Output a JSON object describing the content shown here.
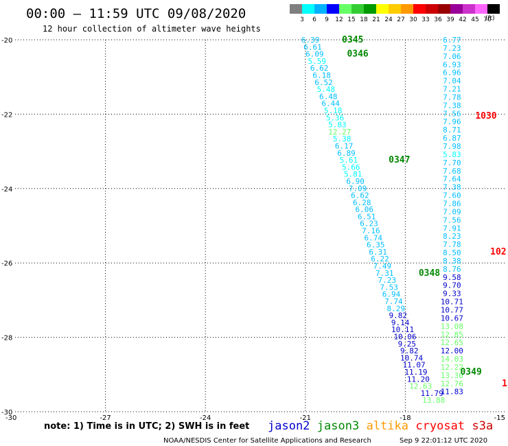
{
  "header": {
    "title": "00:00 – 11:59 UTC 09/08/2020",
    "subtitle": "12 hour collection of altimeter wave heights"
  },
  "colorbar": {
    "labels": [
      "3",
      "6",
      "9",
      "12",
      "15",
      "18",
      "21",
      "24",
      "27",
      "30",
      "33",
      "36",
      "39",
      "42",
      "45",
      "70"
    ],
    "unit": "(ft)",
    "colors": [
      "#7f7f7f",
      "#00ffff",
      "#00b2ff",
      "#0000ff",
      "#66ff66",
      "#33cc33",
      "#009900",
      "#ffff00",
      "#ffcc00",
      "#ff9900",
      "#ff0000",
      "#cc0000",
      "#990000",
      "#990099",
      "#cc33cc",
      "#ff66ff",
      "#000000"
    ]
  },
  "footer": {
    "note": "note: 1) Time is in UTC; 2) SWH is in feet",
    "legend": [
      {
        "name": "jason2",
        "color": "#0000cc"
      },
      {
        "name": "jason3",
        "color": "#008800"
      },
      {
        "name": "altika",
        "color": "#ff9900"
      },
      {
        "name": "cryosat",
        "color": "#ff0000"
      },
      {
        "name": "s3a",
        "color": "#cc0000"
      }
    ],
    "credit": "NOAA/NESDIS Center for Satellite Applications and Research",
    "timestamp": "Sep  9 22:01:12 UTC 2020"
  },
  "chart_data": {
    "type": "scatter",
    "xlim": [
      -30,
      -15
    ],
    "ylim": [
      -30,
      -20
    ],
    "xticks": [
      -30,
      -27,
      -24,
      -21,
      -18,
      -15
    ],
    "yticks": [
      -20,
      -22,
      -24,
      -26,
      -28,
      -30
    ],
    "grid": true,
    "legend_placement": "bottom",
    "tracks": [
      {
        "name": "track-1",
        "points": [
          {
            "x": -20.85,
            "y": -20.0,
            "v": "6.39",
            "color": "#00bfff"
          },
          {
            "x": -20.78,
            "y": -20.19,
            "v": "6.61",
            "color": "#00bfff"
          },
          {
            "x": -20.72,
            "y": -20.38,
            "v": "6.09",
            "color": "#00bfff"
          },
          {
            "x": -20.65,
            "y": -20.57,
            "v": "5.59",
            "color": "#00ffff"
          },
          {
            "x": -20.58,
            "y": -20.76,
            "v": "6.62",
            "color": "#00bfff"
          },
          {
            "x": -20.51,
            "y": -20.95,
            "v": "6.18",
            "color": "#00bfff"
          },
          {
            "x": -20.45,
            "y": -21.14,
            "v": "6.52",
            "color": "#00bfff"
          },
          {
            "x": -20.38,
            "y": -21.33,
            "v": "5.48",
            "color": "#00ffff"
          },
          {
            "x": -20.31,
            "y": -21.52,
            "v": "6.48",
            "color": "#00bfff"
          },
          {
            "x": -20.24,
            "y": -21.71,
            "v": "6.44",
            "color": "#00bfff"
          },
          {
            "x": -20.17,
            "y": -21.9,
            "v": "5.18",
            "color": "#00ffff"
          },
          {
            "x": -20.11,
            "y": -22.09,
            "v": "5.36",
            "color": "#00ffff"
          },
          {
            "x": -20.04,
            "y": -22.28,
            "v": "5.83",
            "color": "#00ffff"
          },
          {
            "x": -19.97,
            "y": -22.47,
            "v": "12.27",
            "color": "#66ff66"
          },
          {
            "x": -19.9,
            "y": -22.66,
            "v": "5.38",
            "color": "#00ffff"
          },
          {
            "x": -19.84,
            "y": -22.85,
            "v": "6.17",
            "color": "#00bfff"
          },
          {
            "x": -19.77,
            "y": -23.04,
            "v": "6.89",
            "color": "#00bfff"
          },
          {
            "x": -19.7,
            "y": -23.23,
            "v": "5.61",
            "color": "#00ffff"
          },
          {
            "x": -19.63,
            "y": -23.42,
            "v": "5.66",
            "color": "#00ffff"
          },
          {
            "x": -19.57,
            "y": -23.61,
            "v": "5.81",
            "color": "#00ffff"
          },
          {
            "x": -19.5,
            "y": -23.8,
            "v": "6.90",
            "color": "#00bfff"
          },
          {
            "x": -19.43,
            "y": -23.99,
            "v": "7.09",
            "color": "#00bfff"
          },
          {
            "x": -19.36,
            "y": -24.18,
            "v": "6.62",
            "color": "#00bfff"
          },
          {
            "x": -19.3,
            "y": -24.37,
            "v": "6.28",
            "color": "#00bfff"
          },
          {
            "x": -19.23,
            "y": -24.56,
            "v": "6.06",
            "color": "#00bfff"
          },
          {
            "x": -19.16,
            "y": -24.75,
            "v": "6.51",
            "color": "#00bfff"
          },
          {
            "x": -19.09,
            "y": -24.94,
            "v": "6.23",
            "color": "#00bfff"
          },
          {
            "x": -19.03,
            "y": -25.13,
            "v": "7.16",
            "color": "#00bfff"
          },
          {
            "x": -18.96,
            "y": -25.32,
            "v": "6.74",
            "color": "#00bfff"
          },
          {
            "x": -18.89,
            "y": -25.51,
            "v": "6.35",
            "color": "#00bfff"
          },
          {
            "x": -18.82,
            "y": -25.7,
            "v": "6.31",
            "color": "#00bfff"
          },
          {
            "x": -18.76,
            "y": -25.89,
            "v": "6.22",
            "color": "#00bfff"
          },
          {
            "x": -18.69,
            "y": -26.08,
            "v": "7.49",
            "color": "#00bfff"
          },
          {
            "x": -18.62,
            "y": -26.27,
            "v": "7.31",
            "color": "#00bfff"
          },
          {
            "x": -18.55,
            "y": -26.46,
            "v": "7.23",
            "color": "#00bfff"
          },
          {
            "x": -18.49,
            "y": -26.65,
            "v": "7.53",
            "color": "#00bfff"
          },
          {
            "x": -18.42,
            "y": -26.84,
            "v": "6.94",
            "color": "#00bfff"
          },
          {
            "x": -18.35,
            "y": -27.03,
            "v": "7.74",
            "color": "#00bfff"
          },
          {
            "x": -18.28,
            "y": -27.22,
            "v": "8.29",
            "color": "#00bfff"
          },
          {
            "x": -18.22,
            "y": -27.41,
            "v": "9.82",
            "color": "#0000cc"
          },
          {
            "x": -18.15,
            "y": -27.6,
            "v": "9.14",
            "color": "#0000cc"
          },
          {
            "x": -18.08,
            "y": -27.79,
            "v": "10.11",
            "color": "#0000cc"
          },
          {
            "x": -18.01,
            "y": -27.98,
            "v": "10.06",
            "color": "#0000cc"
          },
          {
            "x": -17.95,
            "y": -28.17,
            "v": "9.25",
            "color": "#0000cc"
          },
          {
            "x": -17.88,
            "y": -28.36,
            "v": "9.82",
            "color": "#0000cc"
          },
          {
            "x": -17.81,
            "y": -28.55,
            "v": "10.74",
            "color": "#0000cc"
          },
          {
            "x": -17.74,
            "y": -28.74,
            "v": "11.07",
            "color": "#0000cc"
          },
          {
            "x": -17.68,
            "y": -28.93,
            "v": "11.19",
            "color": "#0000cc"
          },
          {
            "x": -17.61,
            "y": -29.12,
            "v": "11.20",
            "color": "#0000cc"
          },
          {
            "x": -17.54,
            "y": -29.31,
            "v": "12.63",
            "color": "#66ff66"
          },
          {
            "x": -17.2,
            "y": -29.5,
            "v": "11.79",
            "color": "#0000cc"
          },
          {
            "x": -17.15,
            "y": -29.69,
            "v": "13.88",
            "color": "#66ff66"
          }
        ]
      },
      {
        "name": "track-2",
        "points": [
          {
            "x": -16.6,
            "y": -20.0,
            "v": "6.77",
            "color": "#00bfff"
          },
          {
            "x": -16.6,
            "y": -20.22,
            "v": "7.23",
            "color": "#00bfff"
          },
          {
            "x": -16.6,
            "y": -20.44,
            "v": "7.06",
            "color": "#00bfff"
          },
          {
            "x": -16.6,
            "y": -20.66,
            "v": "6.93",
            "color": "#00bfff"
          },
          {
            "x": -16.6,
            "y": -20.88,
            "v": "6.96",
            "color": "#00bfff"
          },
          {
            "x": -16.6,
            "y": -21.1,
            "v": "7.04",
            "color": "#00bfff"
          },
          {
            "x": -16.6,
            "y": -21.32,
            "v": "7.21",
            "color": "#00bfff"
          },
          {
            "x": -16.6,
            "y": -21.54,
            "v": "7.78",
            "color": "#00bfff"
          },
          {
            "x": -16.6,
            "y": -21.76,
            "v": "7.38",
            "color": "#00bfff"
          },
          {
            "x": -16.6,
            "y": -21.98,
            "v": "7.56",
            "color": "#00bfff"
          },
          {
            "x": -16.6,
            "y": -22.2,
            "v": "7.96",
            "color": "#00bfff"
          },
          {
            "x": -16.6,
            "y": -22.42,
            "v": "8.71",
            "color": "#00bfff"
          },
          {
            "x": -16.6,
            "y": -22.64,
            "v": "6.87",
            "color": "#00bfff"
          },
          {
            "x": -16.6,
            "y": -22.86,
            "v": "7.98",
            "color": "#00bfff"
          },
          {
            "x": -16.6,
            "y": -23.08,
            "v": "5.83",
            "color": "#00ffff"
          },
          {
            "x": -16.6,
            "y": -23.3,
            "v": "7.70",
            "color": "#00bfff"
          },
          {
            "x": -16.6,
            "y": -23.52,
            "v": "7.68",
            "color": "#00bfff"
          },
          {
            "x": -16.6,
            "y": -23.74,
            "v": "7.64",
            "color": "#00bfff"
          },
          {
            "x": -16.6,
            "y": -23.96,
            "v": "7.38",
            "color": "#00bfff"
          },
          {
            "x": -16.6,
            "y": -24.18,
            "v": "7.60",
            "color": "#00bfff"
          },
          {
            "x": -16.6,
            "y": -24.4,
            "v": "7.86",
            "color": "#00bfff"
          },
          {
            "x": -16.6,
            "y": -24.62,
            "v": "7.09",
            "color": "#00bfff"
          },
          {
            "x": -16.6,
            "y": -24.84,
            "v": "7.56",
            "color": "#00bfff"
          },
          {
            "x": -16.6,
            "y": -25.06,
            "v": "7.91",
            "color": "#00bfff"
          },
          {
            "x": -16.6,
            "y": -25.28,
            "v": "8.23",
            "color": "#00bfff"
          },
          {
            "x": -16.6,
            "y": -25.5,
            "v": "7.78",
            "color": "#00bfff"
          },
          {
            "x": -16.6,
            "y": -25.72,
            "v": "8.50",
            "color": "#00bfff"
          },
          {
            "x": -16.6,
            "y": -25.94,
            "v": "8.38",
            "color": "#00bfff"
          },
          {
            "x": -16.6,
            "y": -26.16,
            "v": "8.76",
            "color": "#00bfff"
          },
          {
            "x": -16.6,
            "y": -26.38,
            "v": "9.58",
            "color": "#0000cc"
          },
          {
            "x": -16.6,
            "y": -26.6,
            "v": "9.70",
            "color": "#0000cc"
          },
          {
            "x": -16.6,
            "y": -26.82,
            "v": "9.33",
            "color": "#0000cc"
          },
          {
            "x": -16.6,
            "y": -27.04,
            "v": "10.71",
            "color": "#0000cc"
          },
          {
            "x": -16.6,
            "y": -27.26,
            "v": "10.77",
            "color": "#0000cc"
          },
          {
            "x": -16.6,
            "y": -27.48,
            "v": "10.67",
            "color": "#0000cc"
          },
          {
            "x": -16.6,
            "y": -27.7,
            "v": "13.08",
            "color": "#66ff66"
          },
          {
            "x": -16.6,
            "y": -27.92,
            "v": "12.85",
            "color": "#66ff66"
          },
          {
            "x": -16.6,
            "y": -28.14,
            "v": "12.65",
            "color": "#66ff66"
          },
          {
            "x": -16.6,
            "y": -28.36,
            "v": "12.00",
            "color": "#0000cc"
          },
          {
            "x": -16.6,
            "y": -28.58,
            "v": "14.03",
            "color": "#66ff66"
          },
          {
            "x": -16.6,
            "y": -28.8,
            "v": "12.22",
            "color": "#66ff66"
          },
          {
            "x": -16.6,
            "y": -29.02,
            "v": "13.30",
            "color": "#66ff66"
          },
          {
            "x": -16.6,
            "y": -29.24,
            "v": "12.76",
            "color": "#66ff66"
          },
          {
            "x": -16.6,
            "y": -29.46,
            "v": "11.83",
            "color": "#0000cc"
          }
        ]
      }
    ],
    "pass_labels": [
      {
        "x": -19.9,
        "y": -20.0,
        "text": "0345",
        "color": "#008800"
      },
      {
        "x": -19.75,
        "y": -20.38,
        "text": "0346",
        "color": "#008800"
      },
      {
        "x": -18.5,
        "y": -23.23,
        "text": "0347",
        "color": "#008800"
      },
      {
        "x": -17.6,
        "y": -26.27,
        "text": "0348",
        "color": "#008800"
      },
      {
        "x": -16.35,
        "y": -28.93,
        "text": "0349",
        "color": "#008800"
      },
      {
        "x": -15.9,
        "y": -22.05,
        "text": "1030",
        "color": "#ff0000"
      },
      {
        "x": -15.45,
        "y": -25.7,
        "text": "102",
        "color": "#ff0000"
      },
      {
        "x": -15.1,
        "y": -29.24,
        "text": "1",
        "color": "#ff0000"
      }
    ]
  }
}
